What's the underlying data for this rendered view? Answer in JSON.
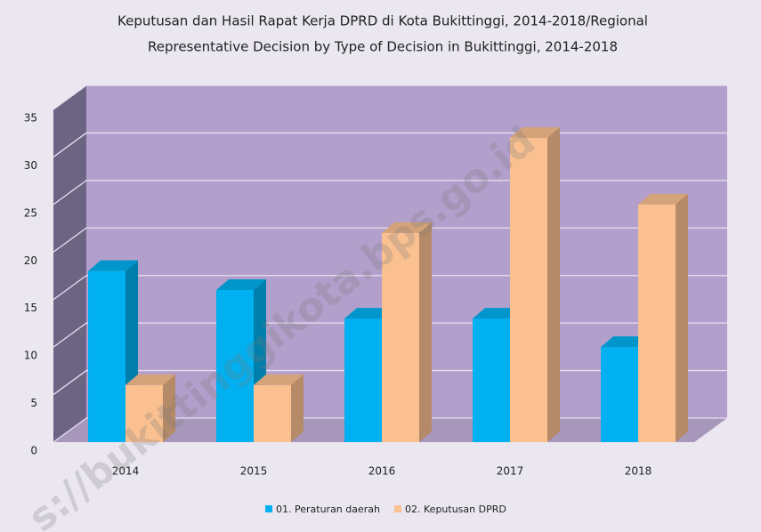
{
  "chart_data": {
    "type": "bar",
    "title": [
      "Keputusan dan Hasil Rapat Kerja DPRD di Kota Bukittinggi, 2014-2018/Regional",
      "Representative Decision by Type of Decision in Bukittinggi, 2014-2018"
    ],
    "categories": [
      "2014",
      "2015",
      "2016",
      "2017",
      "2018"
    ],
    "series": [
      {
        "name": "01. Peraturan daerah",
        "color": "#00b0f0",
        "values": [
          18,
          16,
          13,
          13,
          10
        ]
      },
      {
        "name": "02. Keputusan DPRD",
        "color": "#fac090",
        "values": [
          6,
          6,
          22,
          32,
          25
        ]
      }
    ],
    "ylim": [
      0,
      35
    ],
    "yticks": [
      0,
      5,
      10,
      15,
      20,
      25,
      30,
      35
    ],
    "grid": true,
    "legend": "bottom",
    "watermark": "s://bukittinggikota.bps.go.id"
  }
}
